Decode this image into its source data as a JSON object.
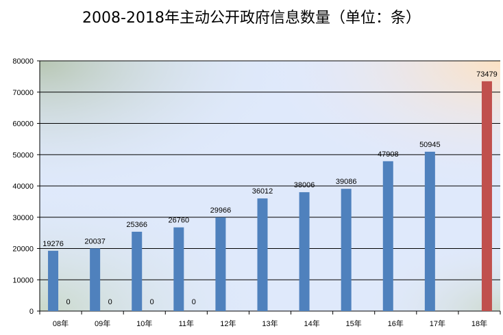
{
  "chart_data": {
    "type": "bar",
    "title": "2008-2018年主动公开政府信息数量（单位：条）",
    "categories": [
      "08年",
      "09年",
      "10年",
      "11年",
      "12年",
      "13年",
      "14年",
      "15年",
      "16年",
      "17年",
      "18年"
    ],
    "series": [
      {
        "color": "#4f81bd",
        "values": [
          19276,
          20037,
          25366,
          26760,
          29966,
          36012,
          38006,
          39086,
          47908,
          50945,
          null
        ],
        "labels": [
          "19276",
          "20037",
          "25366",
          "26760",
          "29966",
          "36012",
          "38006",
          "39086",
          "47908",
          "50945",
          ""
        ]
      },
      {
        "color": "#c0504d",
        "values": [
          0,
          0,
          0,
          0,
          null,
          null,
          null,
          null,
          null,
          null,
          73479
        ],
        "labels": [
          "0",
          "0",
          "0",
          "0",
          "",
          "",
          "",
          "",
          "",
          "",
          "73479"
        ]
      }
    ],
    "yticks": [
      "0",
      "10000",
      "20000",
      "30000",
      "40000",
      "50000",
      "60000",
      "70000",
      "80000"
    ],
    "ylim": [
      0,
      80000
    ],
    "grid": true,
    "legend": "none"
  }
}
